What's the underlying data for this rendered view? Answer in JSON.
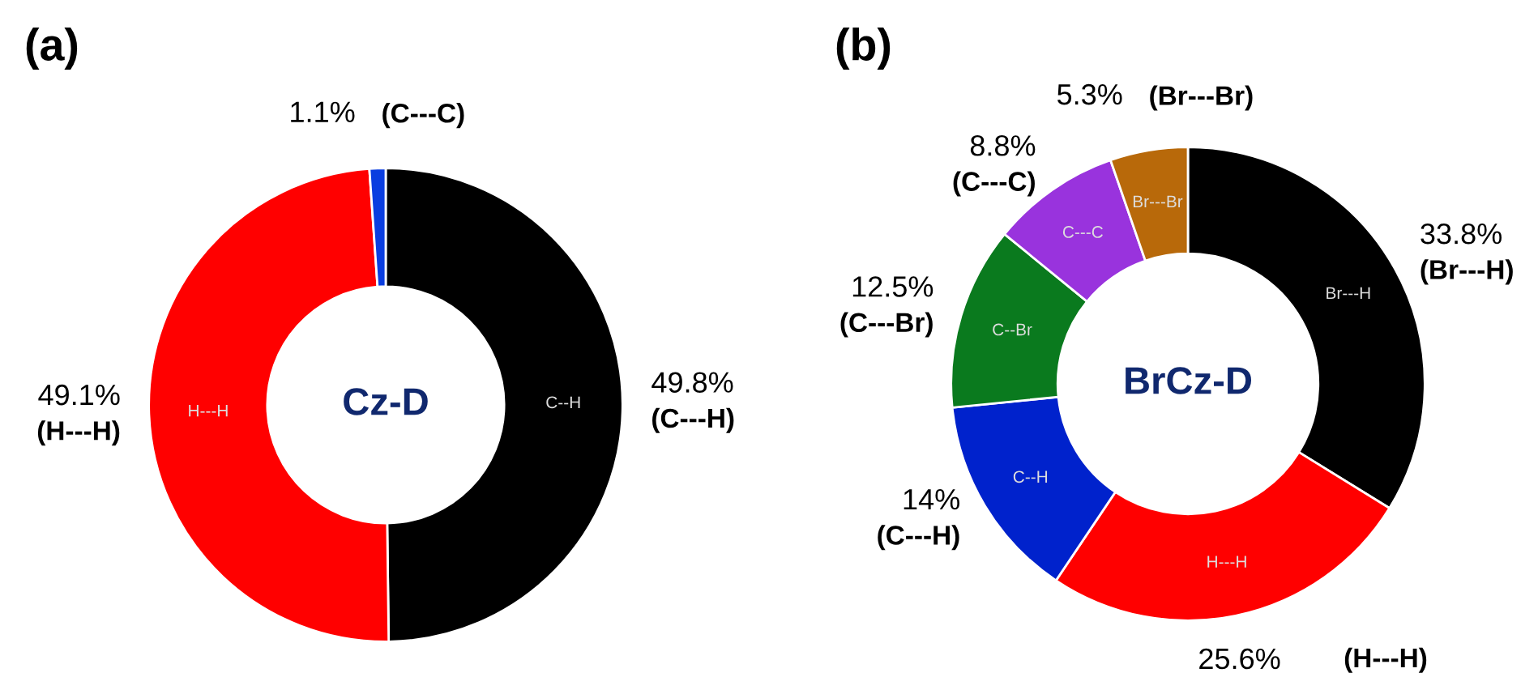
{
  "chart_data": [
    {
      "type": "donut",
      "title": "(a)",
      "subtitle": "Cz-D",
      "categories": [
        "(C---H)",
        "(H---H)",
        "(C---C)"
      ],
      "values": [
        49.8,
        49.1,
        1.1
      ],
      "value_labels": [
        "49.8%",
        "49.1%",
        "1.1%"
      ],
      "colors": [
        "#000000",
        "#ff0000",
        "#0a3de0"
      ],
      "annotations": [
        "C--H",
        "H---H"
      ]
    },
    {
      "type": "donut",
      "title": "(b)",
      "subtitle": "BrCz-D",
      "categories": [
        "(Br---H)",
        "(H---H)",
        "(C---H)",
        "(C---Br)",
        "(C---C)",
        "(Br---Br)"
      ],
      "values": [
        33.8,
        25.6,
        14,
        12.5,
        8.8,
        5.3
      ],
      "value_labels": [
        "33.8%",
        "25.6%",
        "14%",
        "12.5%",
        "8.8%",
        "5.3%"
      ],
      "colors": [
        "#000000",
        "#ff0000",
        "#0022cc",
        "#0a7a1e",
        "#9933dd",
        "#b8690a"
      ],
      "annotations": [
        "Br---H",
        "H---H",
        "C--H",
        "C--Br",
        "C---C",
        "Br---Br"
      ]
    }
  ]
}
